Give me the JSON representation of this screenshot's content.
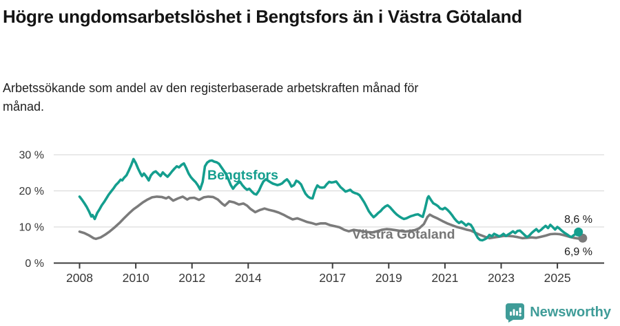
{
  "header": {
    "title": "Högre ungdomsarbetslöshet i Bengtsfors än i Västra Götaland",
    "subtitle": "Arbetssökande som andel av den registerbaserade arbetskraften månad för månad."
  },
  "chart_data": {
    "type": "line",
    "title": "Högre ungdomsarbetslöshet i Bengtsfors än i Västra Götaland",
    "subtitle": "Arbetssökande som andel av den registerbaserade arbetskraften månad för månad.",
    "grid": true,
    "x_axis": {
      "ticks": [
        2008,
        2010,
        2012,
        2014,
        2017,
        2019,
        2021,
        2023,
        2025
      ],
      "range": [
        2007.1,
        2026.6
      ]
    },
    "y_axis": {
      "ticks": [
        0,
        10,
        20,
        30
      ],
      "tick_labels": [
        "0 %",
        "10 %",
        "20 %",
        "30 %"
      ],
      "range": [
        0,
        32
      ]
    },
    "colors": {
      "bengtsfors": "#149e8e",
      "vastra_gotaland": "#7b7b7b",
      "grid": "#dcdcdc",
      "axis": "#3c3c3c",
      "tick_text": "#363636",
      "end_label_text": "#1a1a1a"
    },
    "series": [
      {
        "name": "Västra Götaland",
        "color": "#7b7b7b",
        "end_label": "6,9 %",
        "end_value": 6.9,
        "x": [
          2008.0,
          2008.17,
          2008.33,
          2008.5,
          2008.58,
          2008.75,
          2008.92,
          2009.08,
          2009.25,
          2009.42,
          2009.58,
          2009.75,
          2009.92,
          2010.08,
          2010.25,
          2010.42,
          2010.58,
          2010.75,
          2010.92,
          2011.08,
          2011.17,
          2011.33,
          2011.5,
          2011.67,
          2011.83,
          2011.92,
          2012.08,
          2012.25,
          2012.42,
          2012.58,
          2012.75,
          2012.92,
          2013.08,
          2013.17,
          2013.33,
          2013.5,
          2013.67,
          2013.83,
          2013.96,
          2014.08,
          2014.25,
          2014.42,
          2014.58,
          2014.75,
          2014.92,
          2015.08,
          2015.25,
          2015.42,
          2015.58,
          2015.75,
          2015.92,
          2016.08,
          2016.25,
          2016.42,
          2016.58,
          2016.75,
          2016.92,
          2017.08,
          2017.25,
          2017.42,
          2017.58,
          2017.75,
          2017.92,
          2018.08,
          2018.25,
          2018.42,
          2018.58,
          2018.75,
          2018.92,
          2019.08,
          2019.25,
          2019.42,
          2019.58,
          2019.75,
          2019.92,
          2020.08,
          2020.25,
          2020.38,
          2020.46,
          2020.58,
          2020.75,
          2020.92,
          2021.08,
          2021.25,
          2021.42,
          2021.58,
          2021.75,
          2021.92,
          2022.08,
          2022.25,
          2022.42,
          2022.58,
          2022.75,
          2022.92,
          2023.08,
          2023.25,
          2023.42,
          2023.58,
          2023.75,
          2023.92,
          2024.08,
          2024.25,
          2024.42,
          2024.58,
          2024.75,
          2024.92,
          2025.08,
          2025.25,
          2025.42,
          2025.58,
          2025.75,
          2025.9
        ],
        "values": [
          8.7,
          8.3,
          7.7,
          6.9,
          6.7,
          7.1,
          7.9,
          8.8,
          9.9,
          11.1,
          12.4,
          13.7,
          14.9,
          15.8,
          16.8,
          17.6,
          18.2,
          18.4,
          18.3,
          17.9,
          18.3,
          17.3,
          17.9,
          18.4,
          17.6,
          18.0,
          18.1,
          17.5,
          18.2,
          18.4,
          18.3,
          17.6,
          16.4,
          15.9,
          17.1,
          16.8,
          16.2,
          16.5,
          15.9,
          15.0,
          14.1,
          14.7,
          15.1,
          14.7,
          14.4,
          14.0,
          13.4,
          12.7,
          12.1,
          12.4,
          11.9,
          11.4,
          11.1,
          10.7,
          11.0,
          11.0,
          10.5,
          10.2,
          9.9,
          9.2,
          8.8,
          9.2,
          9.0,
          8.8,
          8.6,
          8.5,
          8.8,
          9.2,
          9.4,
          9.3,
          9.1,
          8.9,
          8.7,
          8.9,
          9.1,
          9.6,
          10.8,
          12.8,
          13.4,
          12.9,
          12.3,
          11.6,
          11.0,
          10.5,
          10.0,
          9.7,
          9.3,
          9.0,
          8.4,
          7.8,
          7.3,
          6.9,
          7.1,
          7.3,
          7.5,
          7.5,
          7.4,
          7.2,
          6.9,
          7.0,
          7.1,
          7.0,
          7.3,
          7.6,
          8.0,
          8.1,
          8.0,
          7.7,
          7.3,
          7.0,
          6.8,
          6.9
        ]
      },
      {
        "name": "Bengtsfors",
        "color": "#149e8e",
        "end_label": "8,6 %",
        "end_value": 8.6,
        "x": [
          2008.0,
          2008.08,
          2008.17,
          2008.25,
          2008.33,
          2008.42,
          2008.46,
          2008.54,
          2008.63,
          2008.71,
          2008.79,
          2008.88,
          2008.96,
          2009.04,
          2009.13,
          2009.21,
          2009.29,
          2009.38,
          2009.46,
          2009.52,
          2009.58,
          2009.67,
          2009.75,
          2009.83,
          2009.92,
          2010.0,
          2010.08,
          2010.17,
          2010.22,
          2010.29,
          2010.38,
          2010.46,
          2010.54,
          2010.63,
          2010.71,
          2010.79,
          2010.88,
          2010.96,
          2011.04,
          2011.13,
          2011.21,
          2011.29,
          2011.38,
          2011.46,
          2011.54,
          2011.63,
          2011.71,
          2011.79,
          2011.88,
          2011.96,
          2012.04,
          2012.13,
          2012.21,
          2012.29,
          2012.38,
          2012.46,
          2012.54,
          2012.63,
          2012.71,
          2012.79,
          2012.88,
          2012.96,
          2013.04,
          2013.13,
          2013.21,
          2013.29,
          2013.38,
          2013.46,
          2013.54,
          2013.63,
          2013.71,
          2013.79,
          2013.88,
          2013.96,
          2014.04,
          2014.13,
          2014.21,
          2014.29,
          2014.38,
          2014.46,
          2014.54,
          2014.63,
          2014.71,
          2014.79,
          2014.88,
          2014.96,
          2015.04,
          2015.13,
          2015.21,
          2015.29,
          2015.38,
          2015.46,
          2015.54,
          2015.63,
          2015.71,
          2015.79,
          2015.88,
          2015.96,
          2016.04,
          2016.13,
          2016.21,
          2016.29,
          2016.38,
          2016.46,
          2016.54,
          2016.63,
          2016.71,
          2016.79,
          2016.88,
          2016.96,
          2017.04,
          2017.13,
          2017.21,
          2017.29,
          2017.38,
          2017.46,
          2017.54,
          2017.63,
          2017.71,
          2017.79,
          2017.88,
          2017.96,
          2018.04,
          2018.13,
          2018.21,
          2018.29,
          2018.38,
          2018.46,
          2018.54,
          2018.63,
          2018.71,
          2018.79,
          2018.88,
          2018.96,
          2019.04,
          2019.13,
          2019.21,
          2019.29,
          2019.38,
          2019.46,
          2019.54,
          2019.63,
          2019.71,
          2019.79,
          2019.88,
          2019.96,
          2020.04,
          2020.13,
          2020.21,
          2020.29,
          2020.38,
          2020.42,
          2020.5,
          2020.58,
          2020.67,
          2020.75,
          2020.83,
          2020.92,
          2021.0,
          2021.08,
          2021.17,
          2021.25,
          2021.33,
          2021.42,
          2021.5,
          2021.58,
          2021.67,
          2021.75,
          2021.83,
          2021.92,
          2022.0,
          2022.08,
          2022.17,
          2022.25,
          2022.33,
          2022.42,
          2022.5,
          2022.58,
          2022.67,
          2022.75,
          2022.83,
          2022.92,
          2023.0,
          2023.08,
          2023.17,
          2023.25,
          2023.33,
          2023.42,
          2023.5,
          2023.58,
          2023.67,
          2023.75,
          2023.83,
          2023.92,
          2024.0,
          2024.08,
          2024.17,
          2024.25,
          2024.33,
          2024.42,
          2024.5,
          2024.58,
          2024.67,
          2024.75,
          2024.83,
          2024.92,
          2025.0,
          2025.08,
          2025.17,
          2025.25,
          2025.33,
          2025.42,
          2025.5,
          2025.58,
          2025.67,
          2025.75
        ],
        "values": [
          18.4,
          17.6,
          16.6,
          15.6,
          14.4,
          12.9,
          13.3,
          12.2,
          13.9,
          14.9,
          16.0,
          17.0,
          18.0,
          19.0,
          19.9,
          20.7,
          21.6,
          22.3,
          23.1,
          22.9,
          23.6,
          24.3,
          25.6,
          27.0,
          28.8,
          27.7,
          26.2,
          24.8,
          24.1,
          24.8,
          23.9,
          22.9,
          24.3,
          25.1,
          25.4,
          24.8,
          24.1,
          25.1,
          24.5,
          23.9,
          24.6,
          25.4,
          26.2,
          26.8,
          26.5,
          27.2,
          27.6,
          26.4,
          24.8,
          23.8,
          23.1,
          22.4,
          21.5,
          20.4,
          22.5,
          26.8,
          27.8,
          28.3,
          28.4,
          28.1,
          27.9,
          27.5,
          26.6,
          25.6,
          24.6,
          23.3,
          21.6,
          20.6,
          21.4,
          22.1,
          22.5,
          21.6,
          20.8,
          20.3,
          20.6,
          19.8,
          19.2,
          19.0,
          20.0,
          21.4,
          22.6,
          23.2,
          22.8,
          22.4,
          22.0,
          21.8,
          21.6,
          21.8,
          22.1,
          22.7,
          23.2,
          22.4,
          21.2,
          21.6,
          22.8,
          22.5,
          21.8,
          20.4,
          19.2,
          18.4,
          18.0,
          17.9,
          20.2,
          21.5,
          21.0,
          20.9,
          21.0,
          21.8,
          22.5,
          22.3,
          22.4,
          22.6,
          21.8,
          21.0,
          20.4,
          19.8,
          20.0,
          20.3,
          19.7,
          19.4,
          19.2,
          18.8,
          17.9,
          16.8,
          15.6,
          14.4,
          13.4,
          12.7,
          13.2,
          13.9,
          14.4,
          15.1,
          15.7,
          16.0,
          15.5,
          14.7,
          14.0,
          13.4,
          12.9,
          12.5,
          12.2,
          12.4,
          12.7,
          13.0,
          13.2,
          13.4,
          13.5,
          13.1,
          12.8,
          15.0,
          18.0,
          18.5,
          17.5,
          16.6,
          16.2,
          15.8,
          15.1,
          14.9,
          15.3,
          14.8,
          14.1,
          13.3,
          12.4,
          11.6,
          11.1,
          11.5,
          11.0,
          10.4,
          10.9,
          10.6,
          9.6,
          8.2,
          7.0,
          6.4,
          6.3,
          6.6,
          7.0,
          7.8,
          7.4,
          8.1,
          7.8,
          7.4,
          7.6,
          8.1,
          7.5,
          7.9,
          8.3,
          8.8,
          8.3,
          8.9,
          9.0,
          8.4,
          7.8,
          7.2,
          7.6,
          8.3,
          8.9,
          9.4,
          8.7,
          9.2,
          9.8,
          10.3,
          9.7,
          10.6,
          10.0,
          9.3,
          10.0,
          9.5,
          8.9,
          8.4,
          8.0,
          7.5,
          7.2,
          7.7,
          8.2,
          8.6
        ]
      }
    ]
  },
  "footer": {
    "brand": "Newsworthy",
    "brand_color": "#3f9c98"
  }
}
